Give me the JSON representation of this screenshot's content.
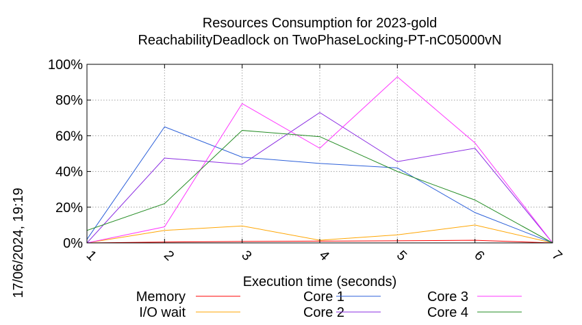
{
  "timestamp": "17/06/2024, 19:19",
  "chart_data": {
    "type": "line",
    "title": [
      "Resources Consumption for 2023-gold",
      "ReachabilityDeadlock on TwoPhaseLocking-PT-nC05000vN"
    ],
    "xlabel": "Execution time (seconds)",
    "ylabel": "",
    "x": [
      1,
      2,
      3,
      4,
      5,
      6,
      7
    ],
    "xlim": [
      1,
      7
    ],
    "ylim": [
      0,
      100
    ],
    "x_ticks": [
      "1",
      "2",
      "3",
      "4",
      "5",
      "6",
      "7"
    ],
    "y_ticks": [
      "0%",
      "20%",
      "40%",
      "60%",
      "80%",
      "100%"
    ],
    "grid": true,
    "legend_position": "bottom",
    "series": [
      {
        "name": "Memory",
        "color": "#ff0000",
        "values": [
          0,
          0.5,
          0.8,
          1,
          1.2,
          1.5,
          0
        ]
      },
      {
        "name": "I/O wait",
        "color": "#ffa500",
        "values": [
          0,
          7,
          9.5,
          1.5,
          4.5,
          10,
          0
        ]
      },
      {
        "name": "Core 1",
        "color": "#2b5fd9",
        "values": [
          2,
          65,
          48,
          44.5,
          42,
          17,
          0
        ]
      },
      {
        "name": "Core 2",
        "color": "#8a2be2",
        "values": [
          0,
          47.5,
          44,
          73,
          45.5,
          53,
          0
        ]
      },
      {
        "name": "Core 3",
        "color": "#ff33ff",
        "values": [
          0,
          9,
          78,
          53,
          93,
          56,
          0
        ]
      },
      {
        "name": "Core 4",
        "color": "#228b22",
        "values": [
          7,
          22,
          63,
          59.5,
          40,
          24,
          0
        ]
      }
    ]
  }
}
